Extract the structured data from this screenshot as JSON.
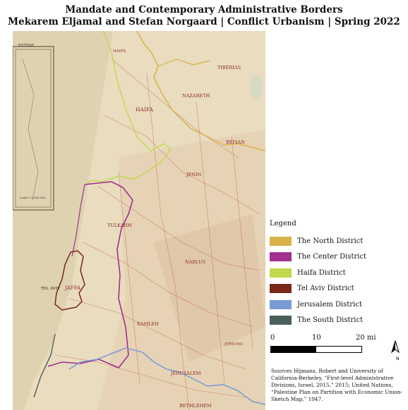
{
  "title": {
    "line1": "Mandate and Contemporary Administrative Borders",
    "line2": "Mekarem Eljamal and Stefan Norgaard | Conflict Urbanism | Spring 2022"
  },
  "map_labels": {
    "haifa_city": "HAIFA",
    "tiberias": "TIBERIAS",
    "nazareth": "NAZARETH",
    "haifa_region": "HAIFA",
    "beisan": "BEISAN",
    "jenin": "JENIN",
    "tulkarm": "TULKARM",
    "nablus": "NABLUS",
    "tel_aviv": "TEL AVIV",
    "jaffa": "JAFFA",
    "ramleh": "RAMLEH",
    "jericho": "JERICHO",
    "jerusalem": "JERUSALEM",
    "bethlehem": "BETHLEHEM",
    "inset_title": "ESTINE",
    "inset_scale": "Scale 1:1,000,000"
  },
  "legend": {
    "title": "Legend",
    "items": [
      {
        "label": "The North District",
        "color": "#d9b24a"
      },
      {
        "label": "The Center District",
        "color": "#a2308f"
      },
      {
        "label": "Haifa District",
        "color": "#c3d84a"
      },
      {
        "label": "Tel Aviv District",
        "color": "#7a2818"
      },
      {
        "label": "Jerusalem District",
        "color": "#7a9ad6"
      },
      {
        "label": "The South District",
        "color": "#4b605c"
      }
    ]
  },
  "scale": {
    "labels": [
      "0",
      "10",
      "20 mi"
    ]
  },
  "north_label": "N",
  "sources": "Sources Hijmans, Robert and University of California-Berkeley, “First-level Administrative Divisions, Israel, 2015,” 2015; United Nations, “Palestine Plan on Partition with Economic Union-Sketch Map,” 1947."
}
